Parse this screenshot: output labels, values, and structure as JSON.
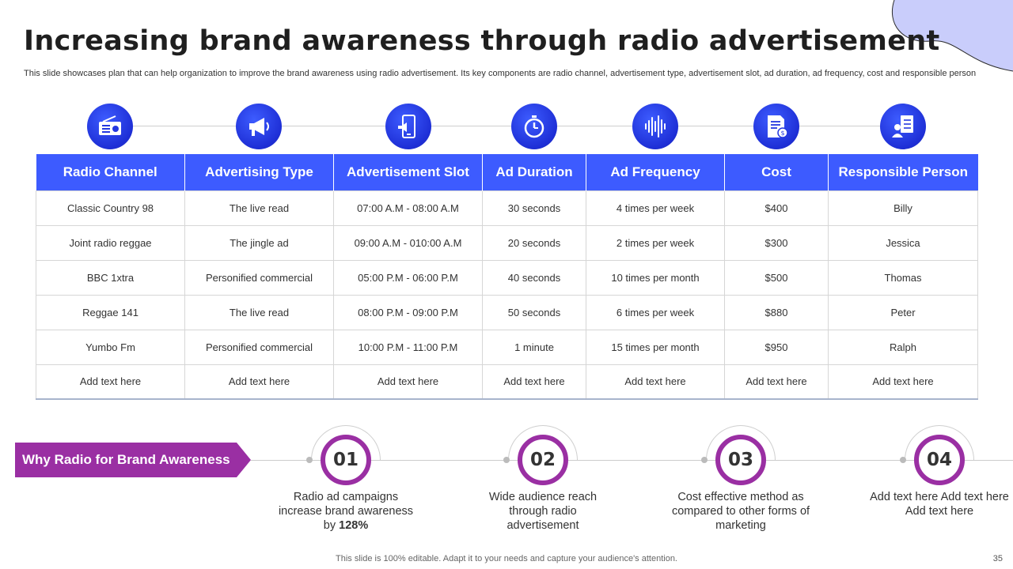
{
  "title": "Increasing brand awareness through radio advertisement",
  "subtitle": "This slide showcases plan that can help organization to improve the brand awareness using radio advertisement. Its key components are radio channel, advertisement type, advertisement slot, ad duration, ad frequency, cost and responsible person",
  "colors": {
    "accent_blue": "#3d5bff",
    "accent_purple": "#9a2fa3",
    "deco_lavender": "#c9cdfb"
  },
  "icons": [
    "radio-icon",
    "megaphone-icon",
    "phone-ad-icon",
    "stopwatch-icon",
    "soundwave-icon",
    "invoice-cost-icon",
    "person-checklist-icon"
  ],
  "table": {
    "headers": [
      "Radio Channel",
      "Advertising Type",
      "Advertisement Slot",
      "Ad Duration",
      "Ad Frequency",
      "Cost",
      "Responsible Person"
    ],
    "rows": [
      [
        "Classic Country 98",
        "The live read",
        "07:00 A.M - 08:00 A.M",
        "30 seconds",
        "4 times per week",
        "$400",
        "Billy"
      ],
      [
        "Joint radio reggae",
        "The jingle ad",
        "09:00 A.M - 010:00 A.M",
        "20 seconds",
        "2 times per week",
        "$300",
        "Jessica"
      ],
      [
        "BBC 1xtra",
        "Personified commercial",
        "05:00 P.M - 06:00 P.M",
        "40 seconds",
        "10 times per month",
        "$500",
        "Thomas"
      ],
      [
        "Reggae 141",
        "The live read",
        "08:00 P.M - 09:00 P.M",
        "50 seconds",
        "6 times per week",
        "$880",
        "Peter"
      ],
      [
        "Yumbo Fm",
        "Personified commercial",
        "10:00 P.M - 11:00 P.M",
        "1 minute",
        "15 times per month",
        "$950",
        "Ralph"
      ],
      [
        "Add text here",
        "Add text here",
        "Add text here",
        "Add text here",
        "Add text here",
        "Add text here",
        "Add text here"
      ]
    ]
  },
  "why": {
    "label": "Why Radio for Brand Awareness",
    "steps": [
      {
        "num": "01",
        "text": "Radio ad campaigns increase brand awareness by ",
        "highlight": "128%"
      },
      {
        "num": "02",
        "text": "Wide audience reach through radio advertisement",
        "highlight": ""
      },
      {
        "num": "03",
        "text": "Cost effective method as compared to other forms of marketing",
        "highlight": ""
      },
      {
        "num": "04",
        "text": "Add text here Add text here Add text here",
        "highlight": ""
      }
    ]
  },
  "footer": "This slide is 100% editable. Adapt it to your needs and capture your audience's attention.",
  "page_number": "35"
}
